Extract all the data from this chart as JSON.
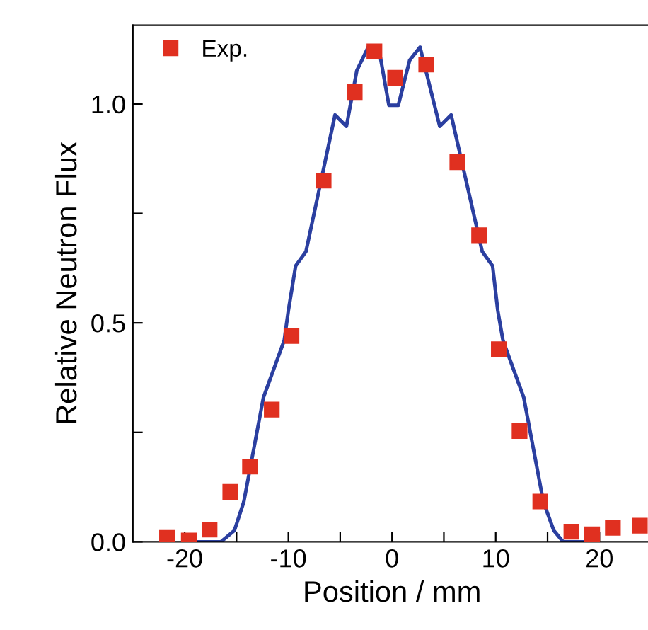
{
  "chart_data": {
    "type": "line",
    "xlabel": "Position / mm",
    "ylabel": "Relative Neutron Flux",
    "xlim": [
      -25,
      25
    ],
    "ylim": [
      0,
      1.18
    ],
    "xticks": [
      -20,
      {
        "value": -15,
        "label": null
      },
      -10,
      {
        "value": -5,
        "label": null
      },
      0,
      {
        "value": 5,
        "label": null
      },
      10,
      {
        "value": 15,
        "label": null
      },
      20
    ],
    "yticks": [
      {
        "value": 0,
        "label": "0.0"
      },
      {
        "value": 0.25,
        "label": null
      },
      {
        "value": 0.5,
        "label": "0.5"
      },
      {
        "value": 0.75,
        "label": null
      },
      {
        "value": 1.0,
        "label": "1.0"
      }
    ],
    "grid": false,
    "legend": "top left",
    "series": [
      {
        "color": "#2b3fa0",
        "marker": "none",
        "line_style": "solid",
        "x": [
          -19.2,
          -16.5,
          -15.2,
          -14.3,
          -12.4,
          -10.4,
          -10.0,
          -9.3,
          -8.3,
          -5.5,
          -4.4,
          -3.4,
          -2.3,
          -1.3,
          -0.3,
          0.6,
          1.7,
          2.7,
          4.6,
          5.7,
          8.7,
          9.7,
          10.2,
          10.7,
          12.7,
          14.6,
          15.6,
          16.5,
          19.7
        ],
        "values": [
          0,
          0,
          0.026,
          0.091,
          0.33,
          0.46,
          0.528,
          0.63,
          0.663,
          0.975,
          0.949,
          1.076,
          1.13,
          1.13,
          0.997,
          0.997,
          1.1,
          1.13,
          0.949,
          0.975,
          0.663,
          0.63,
          0.528,
          0.46,
          0.33,
          0.091,
          0.026,
          0,
          0
        ]
      },
      {
        "type": "scatter",
        "name": "Exp.",
        "color": "#e03020",
        "marker": "square",
        "x": [
          -21.7,
          -19.6,
          -17.6,
          -15.6,
          -13.7,
          -11.6,
          -9.7,
          -6.6,
          -3.6,
          -1.7,
          0.3,
          3.3,
          6.3,
          8.4,
          10.3,
          12.3,
          14.3,
          17.3,
          19.3,
          21.3,
          23.9
        ],
        "values": [
          0.009,
          0.003,
          0.028,
          0.114,
          0.172,
          0.302,
          0.47,
          0.825,
          1.027,
          1.12,
          1.06,
          1.09,
          0.867,
          0.7,
          0.44,
          0.253,
          0.092,
          0.023,
          0.017,
          0.032,
          0.037
        ]
      }
    ]
  }
}
